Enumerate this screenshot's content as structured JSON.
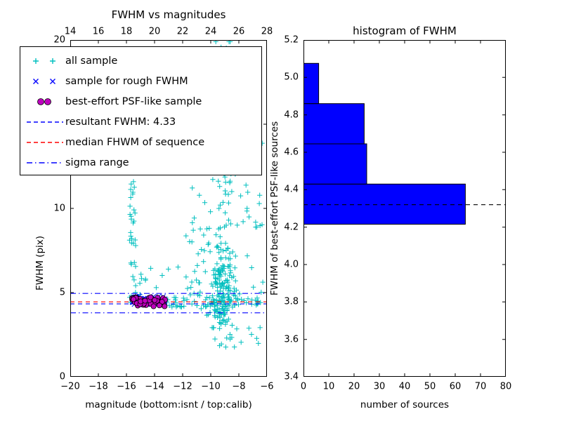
{
  "figure": {
    "background": "#ffffff"
  },
  "chart_data": [
    {
      "type": "scatter",
      "title": "FWHM vs magnitudes",
      "xlabel": "magnitude (bottom:isnt / top:calib)",
      "ylabel": "FWHM (pix)",
      "xlim": [
        -20,
        -6
      ],
      "ylim": [
        0,
        20
      ],
      "seed": 42,
      "x_ticks": {
        "values": [
          -20,
          -18,
          -16,
          -14,
          -12,
          -10,
          -8,
          -6
        ],
        "labels": [
          "−20",
          "−18",
          "−16",
          "−14",
          "−12",
          "−10",
          "−8",
          "−6"
        ]
      },
      "top_axis": {
        "lim": [
          14,
          28
        ],
        "tick_values": [
          14,
          16,
          18,
          20,
          22,
          24,
          26,
          28
        ],
        "tick_labels": [
          "14",
          "16",
          "18",
          "20",
          "22",
          "24",
          "26",
          "28"
        ]
      },
      "y_ticks": {
        "values": [
          0,
          5,
          10,
          15,
          20
        ],
        "labels": [
          "0",
          "5",
          "10",
          "15",
          "20"
        ]
      },
      "hlines": [
        {
          "name": "resultant-fwhm",
          "y": 4.33,
          "color": "#0000ff",
          "style": "dashed"
        },
        {
          "name": "median-fwhm",
          "y": 4.45,
          "color": "#ff0000",
          "style": "dashed"
        },
        {
          "name": "sigma-upper",
          "y": 4.95,
          "color": "#0000ff",
          "style": "dashdot"
        },
        {
          "name": "sigma-lower",
          "y": 3.8,
          "color": "#0000ff",
          "style": "dashdot"
        }
      ],
      "series": [
        {
          "name": "all sample",
          "marker": "plus",
          "color": "#00bfbf",
          "clusters": [
            {
              "type": "uniform",
              "x0": -15.78,
              "x1": -15.32,
              "y0": 4.3,
              "y1": 12.4,
              "count": 38
            },
            {
              "type": "uniform",
              "x0": -15.9,
              "x1": -13.0,
              "y0": 4.7,
              "y1": 6.6,
              "count": 10
            },
            {
              "type": "gauss",
              "cx": -9.15,
              "cy": 5.1,
              "sx": 0.5,
              "sy": 1.3,
              "count": 170
            },
            {
              "type": "gauss",
              "cx": -9.1,
              "cy": 12.0,
              "sx": 0.35,
              "sy": 4.0,
              "count": 65
            },
            {
              "type": "uniform",
              "x0": -12.6,
              "x1": -6.15,
              "y0": 3.9,
              "y1": 11.0,
              "count": 55
            },
            {
              "type": "uniform",
              "x0": -12.1,
              "x1": -6.2,
              "y0": 11.0,
              "y1": 19.8,
              "count": 40
            },
            {
              "type": "uniform",
              "x0": -13.2,
              "x1": -6.2,
              "y0": 4.12,
              "y1": 4.72,
              "count": 55
            },
            {
              "type": "uniform",
              "x0": -9.9,
              "x1": -6.4,
              "y0": 1.7,
              "y1": 3.3,
              "count": 10
            },
            {
              "type": "uniform",
              "x0": -11.6,
              "x1": -10.1,
              "y0": 4.1,
              "y1": 9.0,
              "count": 15
            }
          ]
        },
        {
          "name": "sample for rough FWHM",
          "marker": "x",
          "color": "#0000ff",
          "clusters": [
            {
              "type": "uniform",
              "x0": -15.65,
              "x1": -13.25,
              "y0": 4.25,
              "y1": 4.8,
              "count": 48
            }
          ]
        },
        {
          "name": "best-effort PSF-like sample",
          "marker": "circle",
          "color": "#bf00bf",
          "edge": "#000000",
          "clusters": [
            {
              "type": "uniform",
              "x0": -15.6,
              "x1": -13.2,
              "y0": 4.17,
              "y1": 4.73,
              "count": 40
            }
          ]
        }
      ]
    },
    {
      "type": "bar",
      "orientation": "horizontal",
      "title": "histogram of FWHM",
      "xlabel": "number of sources",
      "ylabel": "FWHM of best-effort PSF-like sources",
      "xlim": [
        0,
        80
      ],
      "ylim": [
        3.4,
        5.2
      ],
      "x_ticks": {
        "values": [
          0,
          10,
          20,
          30,
          40,
          50,
          60,
          70,
          80
        ],
        "labels": [
          "0",
          "10",
          "20",
          "30",
          "40",
          "50",
          "60",
          "70",
          "80"
        ]
      },
      "y_ticks": {
        "values": [
          3.4,
          3.6,
          3.8,
          4.0,
          4.2,
          4.4,
          4.6,
          4.8,
          5.0,
          5.2
        ],
        "labels": [
          "3.4",
          "3.6",
          "3.8",
          "4.0",
          "4.2",
          "4.4",
          "4.6",
          "4.8",
          "5.0",
          "5.2"
        ]
      },
      "bins": {
        "edges": [
          4.215,
          4.43,
          4.645,
          4.86,
          5.075
        ],
        "counts": [
          64,
          25,
          24,
          6
        ]
      },
      "bar_color": "#0000ff",
      "bar_edge": "#000000",
      "median_line": {
        "y": 4.32,
        "color": "#000000",
        "style": "dashed"
      }
    }
  ],
  "legend": {
    "entries": [
      {
        "label": "all sample",
        "swatch": "plus",
        "color": "#00bfbf"
      },
      {
        "label": "sample for rough FWHM",
        "swatch": "x",
        "color": "#0000ff"
      },
      {
        "label": "best-effort PSF-like sample",
        "swatch": "circle",
        "color": "#bf00bf"
      },
      {
        "label": "resultant FWHM: 4.33",
        "swatch": "dashed",
        "color": "#0000ff"
      },
      {
        "label": "median FHWM of sequence",
        "swatch": "dashed",
        "color": "#ff0000"
      },
      {
        "label": "sigma range",
        "swatch": "dashdot",
        "color": "#0000ff"
      }
    ]
  }
}
